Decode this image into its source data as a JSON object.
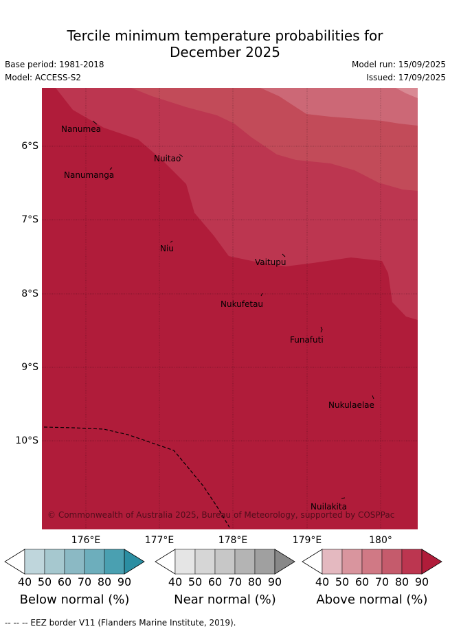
{
  "title_line1": "Tercile minimum temperature probabilities for",
  "title_line2": "December 2025",
  "base_period": "Base period: 1981-2018",
  "model": "Model: ACCESS-S2",
  "model_run": "Model run: 15/09/2025",
  "issued": "Issued: 17/09/2025",
  "copyright": "© Commonwealth of Australia 2025, Bureau of Meteorology, supported by COSPPac",
  "footer": "--  --  -- EEZ border V11 (Flanders Marine Institute, 2019).",
  "x_ticks": [
    "176°E",
    "177°E",
    "178°E",
    "179°E",
    "180°"
  ],
  "y_ticks": [
    "6°S",
    "7°S",
    "8°S",
    "9°S",
    "10°S"
  ],
  "places": [
    {
      "name": "Nanumea"
    },
    {
      "name": "Nuitao"
    },
    {
      "name": "Nanumanga"
    },
    {
      "name": "Niu"
    },
    {
      "name": "Vaitupu"
    },
    {
      "name": "Nukufetau"
    },
    {
      "name": "Funafuti"
    },
    {
      "name": "Nukulaelae"
    },
    {
      "name": "Nuilakita"
    }
  ],
  "colorbars": [
    {
      "label": "Below normal (%)",
      "ticks": [
        "40",
        "50",
        "60",
        "70",
        "80",
        "90"
      ],
      "colors": [
        "#bfd6dc",
        "#a6c8cf",
        "#8bb9c4",
        "#6daebc",
        "#4aa0b1",
        "#2b8ea2"
      ]
    },
    {
      "label": "Near normal (%)",
      "ticks": [
        "40",
        "50",
        "60",
        "70",
        "80",
        "90"
      ],
      "colors": [
        "#e5e5e5",
        "#d6d6d6",
        "#c7c7c7",
        "#b4b4b4",
        "#a0a0a0",
        "#888888"
      ]
    },
    {
      "label": "Above normal (%)",
      "ticks": [
        "40",
        "50",
        "60",
        "70",
        "80",
        "90"
      ],
      "colors": [
        "#e4b9c0",
        "#d9959e",
        "#d07985",
        "#c55b6c",
        "#bc3650",
        "#b01c3a"
      ]
    }
  ],
  "map_colors": {
    "c90": "#b01c3a",
    "c80": "#bc3650",
    "c70": "#c24b59",
    "c60": "#cc6876",
    "c50": "#d98a94"
  }
}
